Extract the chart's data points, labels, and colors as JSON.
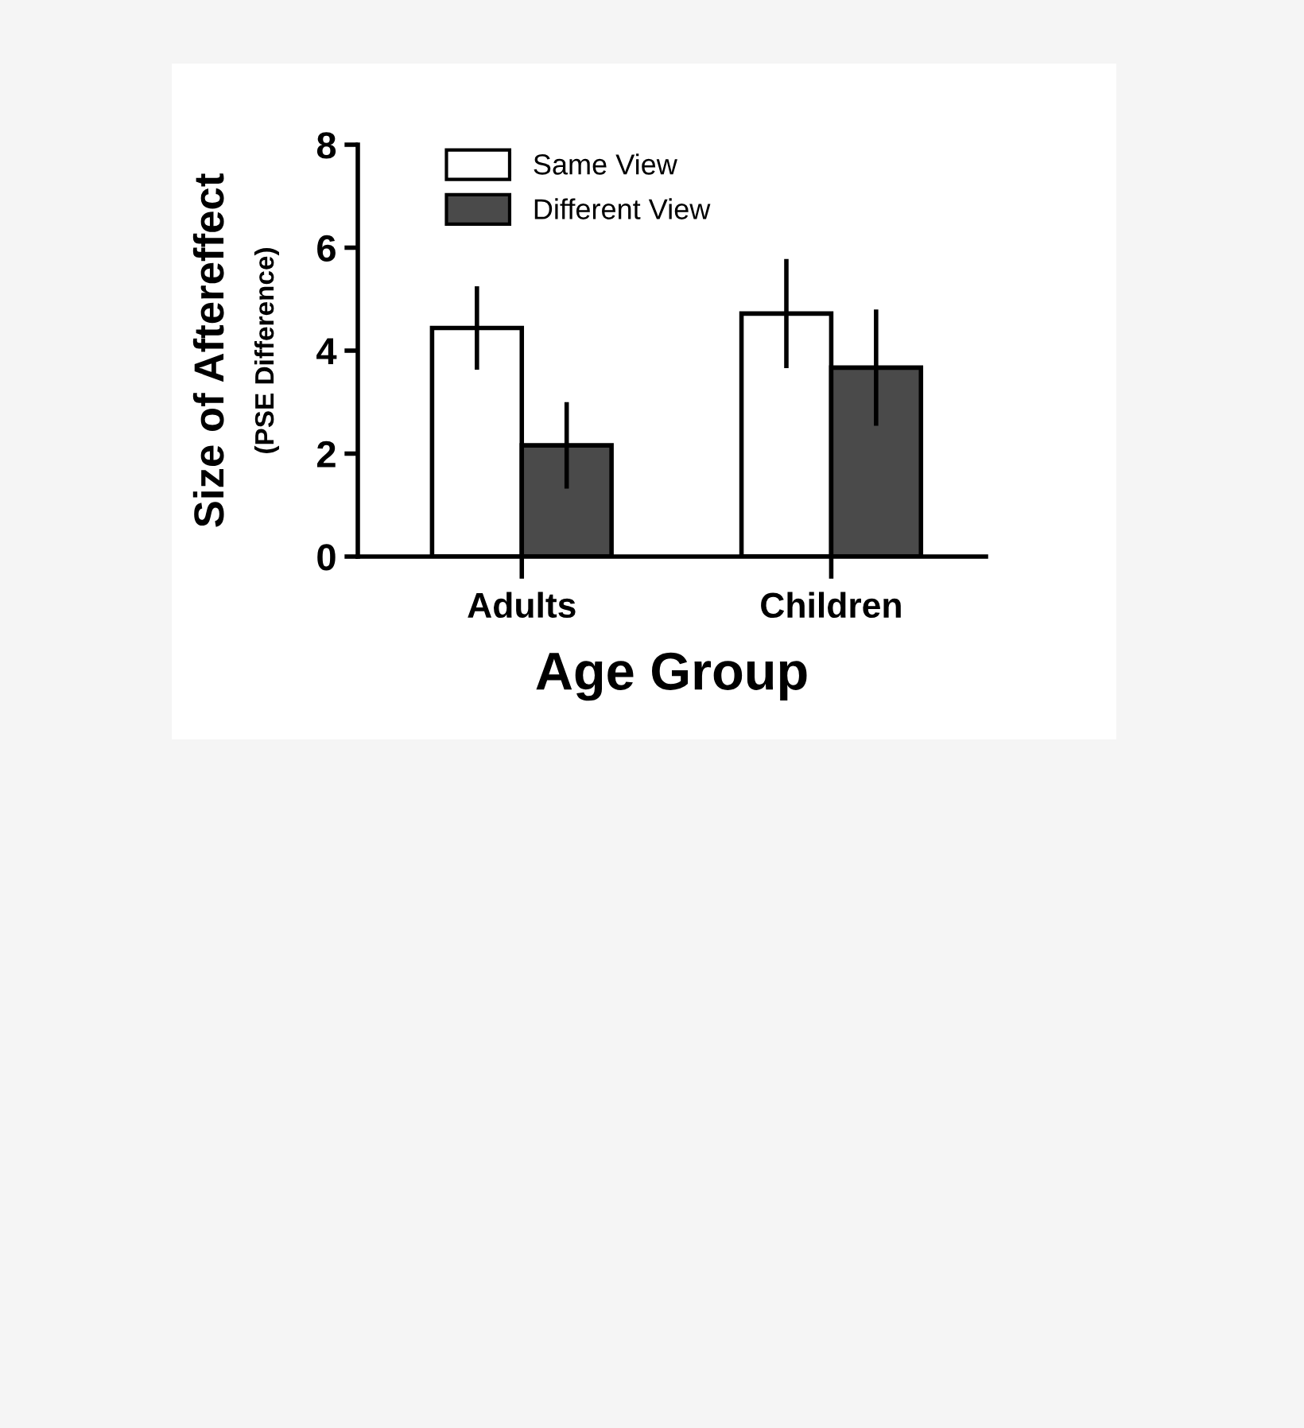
{
  "chart_data": {
    "type": "bar",
    "xlabel": "Age Group",
    "ylabel": "Size of Aftereffect",
    "annotations": [
      "(PSE Difference)"
    ],
    "categories": [
      "Adults",
      "Children"
    ],
    "series": [
      {
        "name": "Same View",
        "color": "#ffffff",
        "values": [
          4.44,
          4.72
        ],
        "errors": [
          0.81,
          1.06
        ]
      },
      {
        "name": "Different View",
        "color": "#4a4a4a",
        "values": [
          2.16,
          3.67
        ],
        "errors": [
          0.84,
          1.13
        ]
      }
    ],
    "ylim": [
      0,
      8
    ],
    "yticks": [
      0,
      2,
      4,
      6,
      8
    ],
    "grid": false,
    "legend": "top left"
  }
}
